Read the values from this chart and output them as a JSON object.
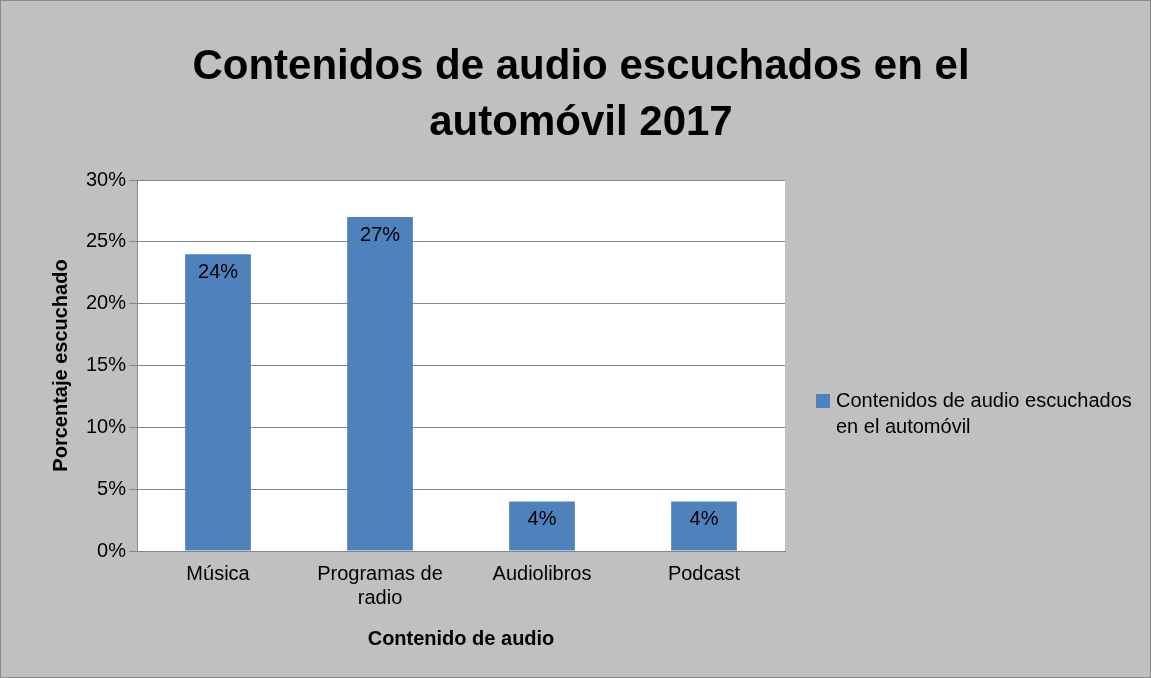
{
  "chart_data": {
    "type": "bar",
    "title": "Contenidos de audio escuchados en el automóvil 2017",
    "xlabel": "Contenido de audio",
    "ylabel": "Porcentaje escuchado",
    "categories": [
      "Música",
      "Programas de radio",
      "Audiolibros",
      "Podcast"
    ],
    "series": [
      {
        "name": "Contenidos de audio escuchados en el automóvil",
        "color": "#4f81bd",
        "values": [
          24,
          27,
          4,
          4
        ],
        "value_labels": [
          "24%",
          "27%",
          "4%",
          "4%"
        ]
      }
    ],
    "ylim": [
      0,
      30
    ],
    "yticks": [
      {
        "value": 0,
        "label": "0%"
      },
      {
        "value": 5,
        "label": "5%"
      },
      {
        "value": 10,
        "label": "10%"
      },
      {
        "value": 15,
        "label": "15%"
      },
      {
        "value": 20,
        "label": "20%"
      },
      {
        "value": 25,
        "label": "25%"
      },
      {
        "value": 30,
        "label": "30%"
      }
    ],
    "grid": "y",
    "legend": "right"
  }
}
